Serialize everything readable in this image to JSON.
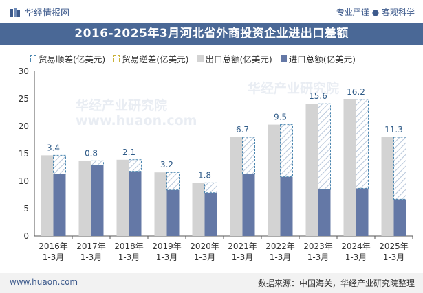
{
  "header": {
    "brand": "华经情报网",
    "tagline": "专业严谨 ● 客观科学",
    "title": "2016-2025年3月河北省外商投资企业进出口差额"
  },
  "legend": {
    "surplus": "贸易顺差(亿美元)",
    "deficit": "贸易逆差(亿美元)",
    "total": "出口总额(亿美元)",
    "import": "进口总额(亿美元)"
  },
  "footer": {
    "website": "www.huaon.com",
    "source": "数据来源：中国海关，华经产业研究院整理"
  },
  "watermark": "华经产业研究院",
  "watermark_url": "www.huaon.com",
  "colors": {
    "title_bg": "#4a6896",
    "total_bar": "#d3d3d3",
    "import_bar": "#6478a6",
    "surplus_border": "#4a86b0"
  },
  "chart_data": {
    "type": "bar",
    "categories": [
      "2016年\n1-3月",
      "2017年\n1-3月",
      "2018年\n1-3月",
      "2019年\n1-3月",
      "2020年\n1-3月",
      "2021年\n1-3月",
      "2022年\n1-3月",
      "2023年\n1-3月",
      "2024年\n1-3月",
      "2025年\n1-3月"
    ],
    "series": [
      {
        "name": "出口总额(亿美元)",
        "values": [
          14.7,
          13.7,
          13.9,
          11.6,
          9.7,
          18.0,
          20.3,
          24.1,
          24.9,
          18.0
        ]
      },
      {
        "name": "进口总额(亿美元)",
        "values": [
          11.3,
          12.9,
          11.8,
          8.4,
          7.9,
          11.3,
          10.8,
          8.5,
          8.7,
          6.7
        ]
      },
      {
        "name": "贸易顺差(亿美元)",
        "values": [
          3.4,
          0.8,
          2.1,
          3.2,
          1.8,
          6.7,
          9.5,
          15.6,
          16.2,
          11.3
        ]
      }
    ],
    "ylim": [
      0,
      30
    ],
    "yticks": [
      0,
      5,
      10,
      15,
      20,
      25,
      30
    ]
  }
}
